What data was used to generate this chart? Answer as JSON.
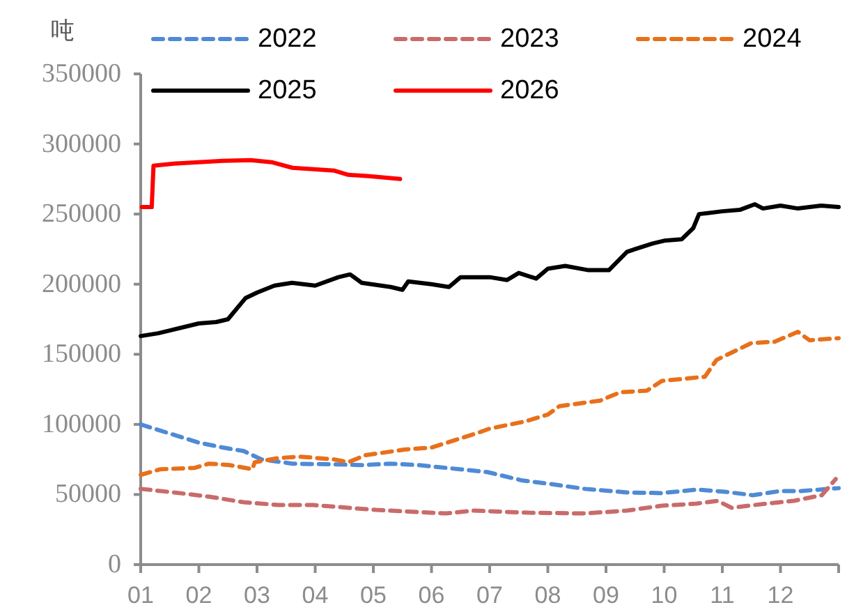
{
  "chart_data": {
    "type": "line",
    "ylabel": "吨",
    "legend": "top",
    "grid": false,
    "xlim": [
      1,
      13
    ],
    "xticks": [
      {
        "value": 1,
        "label": "01"
      },
      {
        "value": 2,
        "label": "02"
      },
      {
        "value": 3,
        "label": "03"
      },
      {
        "value": 4,
        "label": "04"
      },
      {
        "value": 5,
        "label": "05"
      },
      {
        "value": 6,
        "label": "06"
      },
      {
        "value": 7,
        "label": "07"
      },
      {
        "value": 8,
        "label": "08"
      },
      {
        "value": 9,
        "label": "09"
      },
      {
        "value": 10,
        "label": "10"
      },
      {
        "value": 11,
        "label": "11"
      },
      {
        "value": 12,
        "label": "12"
      },
      {
        "value": 13,
        "label": null
      }
    ],
    "ylim": [
      0,
      350000
    ],
    "yticks": [
      0,
      50000,
      100000,
      150000,
      200000,
      250000,
      300000,
      350000
    ],
    "series": [
      {
        "name": "2022",
        "color": "#4f8ad6",
        "line_style": "dashed",
        "x": [
          1,
          1.46,
          2,
          2.41,
          2.77,
          3.08,
          3.61,
          4.33,
          4.81,
          5.29,
          5.77,
          6.49,
          6.96,
          7.56,
          8.04,
          8.64,
          9.36,
          9.96,
          10.56,
          11.04,
          11.52,
          12,
          12.35,
          13
        ],
        "values": [
          100000,
          94000,
          87000,
          83500,
          81000,
          75000,
          72000,
          71500,
          71000,
          72000,
          71000,
          68000,
          66000,
          60000,
          57500,
          54000,
          51500,
          51000,
          53500,
          52000,
          49500,
          52500,
          52500,
          54500
        ]
      },
      {
        "name": "2023",
        "color": "#c96b6b",
        "line_style": "dashed",
        "x": [
          1,
          1.57,
          2.17,
          2.77,
          3.37,
          3.97,
          4.57,
          5.05,
          5.77,
          6.25,
          6.72,
          7.68,
          8.64,
          9.36,
          9.96,
          10.56,
          10.92,
          11.16,
          11.75,
          12.23,
          12.71,
          12.95
        ],
        "values": [
          54000,
          51500,
          48500,
          44500,
          42500,
          42500,
          40500,
          39000,
          37500,
          36500,
          38500,
          37000,
          36500,
          38500,
          42000,
          43500,
          45500,
          40500,
          43500,
          45500,
          49500,
          61000
        ]
      },
      {
        "name": "2024",
        "color": "#e8701a",
        "line_style": "dashed",
        "x": [
          1,
          1.34,
          1.93,
          2.17,
          2.53,
          2.92,
          2.96,
          3.37,
          3.73,
          4.33,
          4.57,
          4.86,
          5.53,
          6,
          6.8,
          7,
          7.6,
          8,
          8.2,
          8.9,
          9.25,
          9.7,
          9.96,
          10.7,
          10.9,
          11.5,
          11.9,
          12.3,
          12.5,
          13
        ],
        "values": [
          64000,
          68000,
          69000,
          72000,
          71000,
          68000,
          73000,
          76000,
          77000,
          75000,
          73000,
          78000,
          82000,
          83500,
          94000,
          97000,
          102000,
          107000,
          113000,
          117000,
          123000,
          124000,
          131000,
          134000,
          146000,
          158000,
          159000,
          166000,
          160000,
          161500
        ]
      },
      {
        "name": "2025",
        "color": "#000000",
        "line_style": "solid",
        "x": [
          1,
          1.3,
          1.5,
          2,
          2.3,
          2.5,
          2.8,
          3,
          3.3,
          3.6,
          4,
          4.4,
          4.6,
          4.8,
          5.3,
          5.5,
          5.6,
          6,
          6.3,
          6.5,
          7,
          7.3,
          7.5,
          7.8,
          8,
          8.3,
          8.7,
          9.05,
          9.36,
          9.5,
          9.8,
          10,
          10.3,
          10.5,
          10.6,
          11,
          11.3,
          11.56,
          11.7,
          12,
          12.3,
          12.7,
          13
        ],
        "values": [
          163000,
          165000,
          167000,
          172000,
          173000,
          175000,
          190000,
          194000,
          199000,
          201000,
          199000,
          205000,
          207000,
          201000,
          198000,
          196000,
          202000,
          200000,
          198000,
          205000,
          205000,
          203000,
          208000,
          204000,
          211000,
          213000,
          210000,
          210000,
          223000,
          225000,
          229000,
          231000,
          232000,
          240000,
          250000,
          252000,
          253000,
          257000,
          254000,
          256000,
          254000,
          256000,
          255000
        ]
      },
      {
        "name": "2026",
        "color": "#ff0000",
        "line_style": "solid",
        "x": [
          1.02,
          1.19,
          1.22,
          1.57,
          2.41,
          2.89,
          3.25,
          3.61,
          4.33,
          4.57,
          4.93,
          5.46
        ],
        "values": [
          255000,
          255000,
          284500,
          286000,
          288000,
          288500,
          287000,
          283000,
          281000,
          278000,
          277000,
          275000
        ]
      }
    ]
  }
}
